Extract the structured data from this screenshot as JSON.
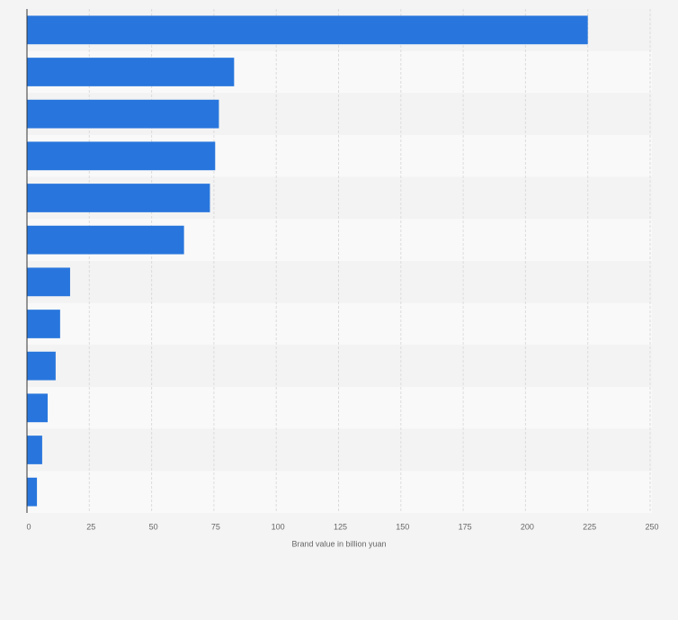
{
  "chart_data": {
    "type": "bar",
    "orientation": "horizontal",
    "x_label": "Brand value in billion yuan",
    "categories": [
      null,
      null,
      null,
      null,
      null,
      null,
      null,
      null,
      null,
      null,
      null,
      null
    ],
    "values": [
      225,
      83.1,
      77,
      75.5,
      73.4,
      63,
      17.3,
      13.3,
      11.5,
      8.3,
      6.1,
      4
    ],
    "color": "#2876dd",
    "xlim": [
      0,
      250
    ],
    "xticks": [
      0,
      25,
      50,
      75,
      100,
      125,
      150,
      175,
      200,
      225,
      250
    ],
    "grid": true
  }
}
